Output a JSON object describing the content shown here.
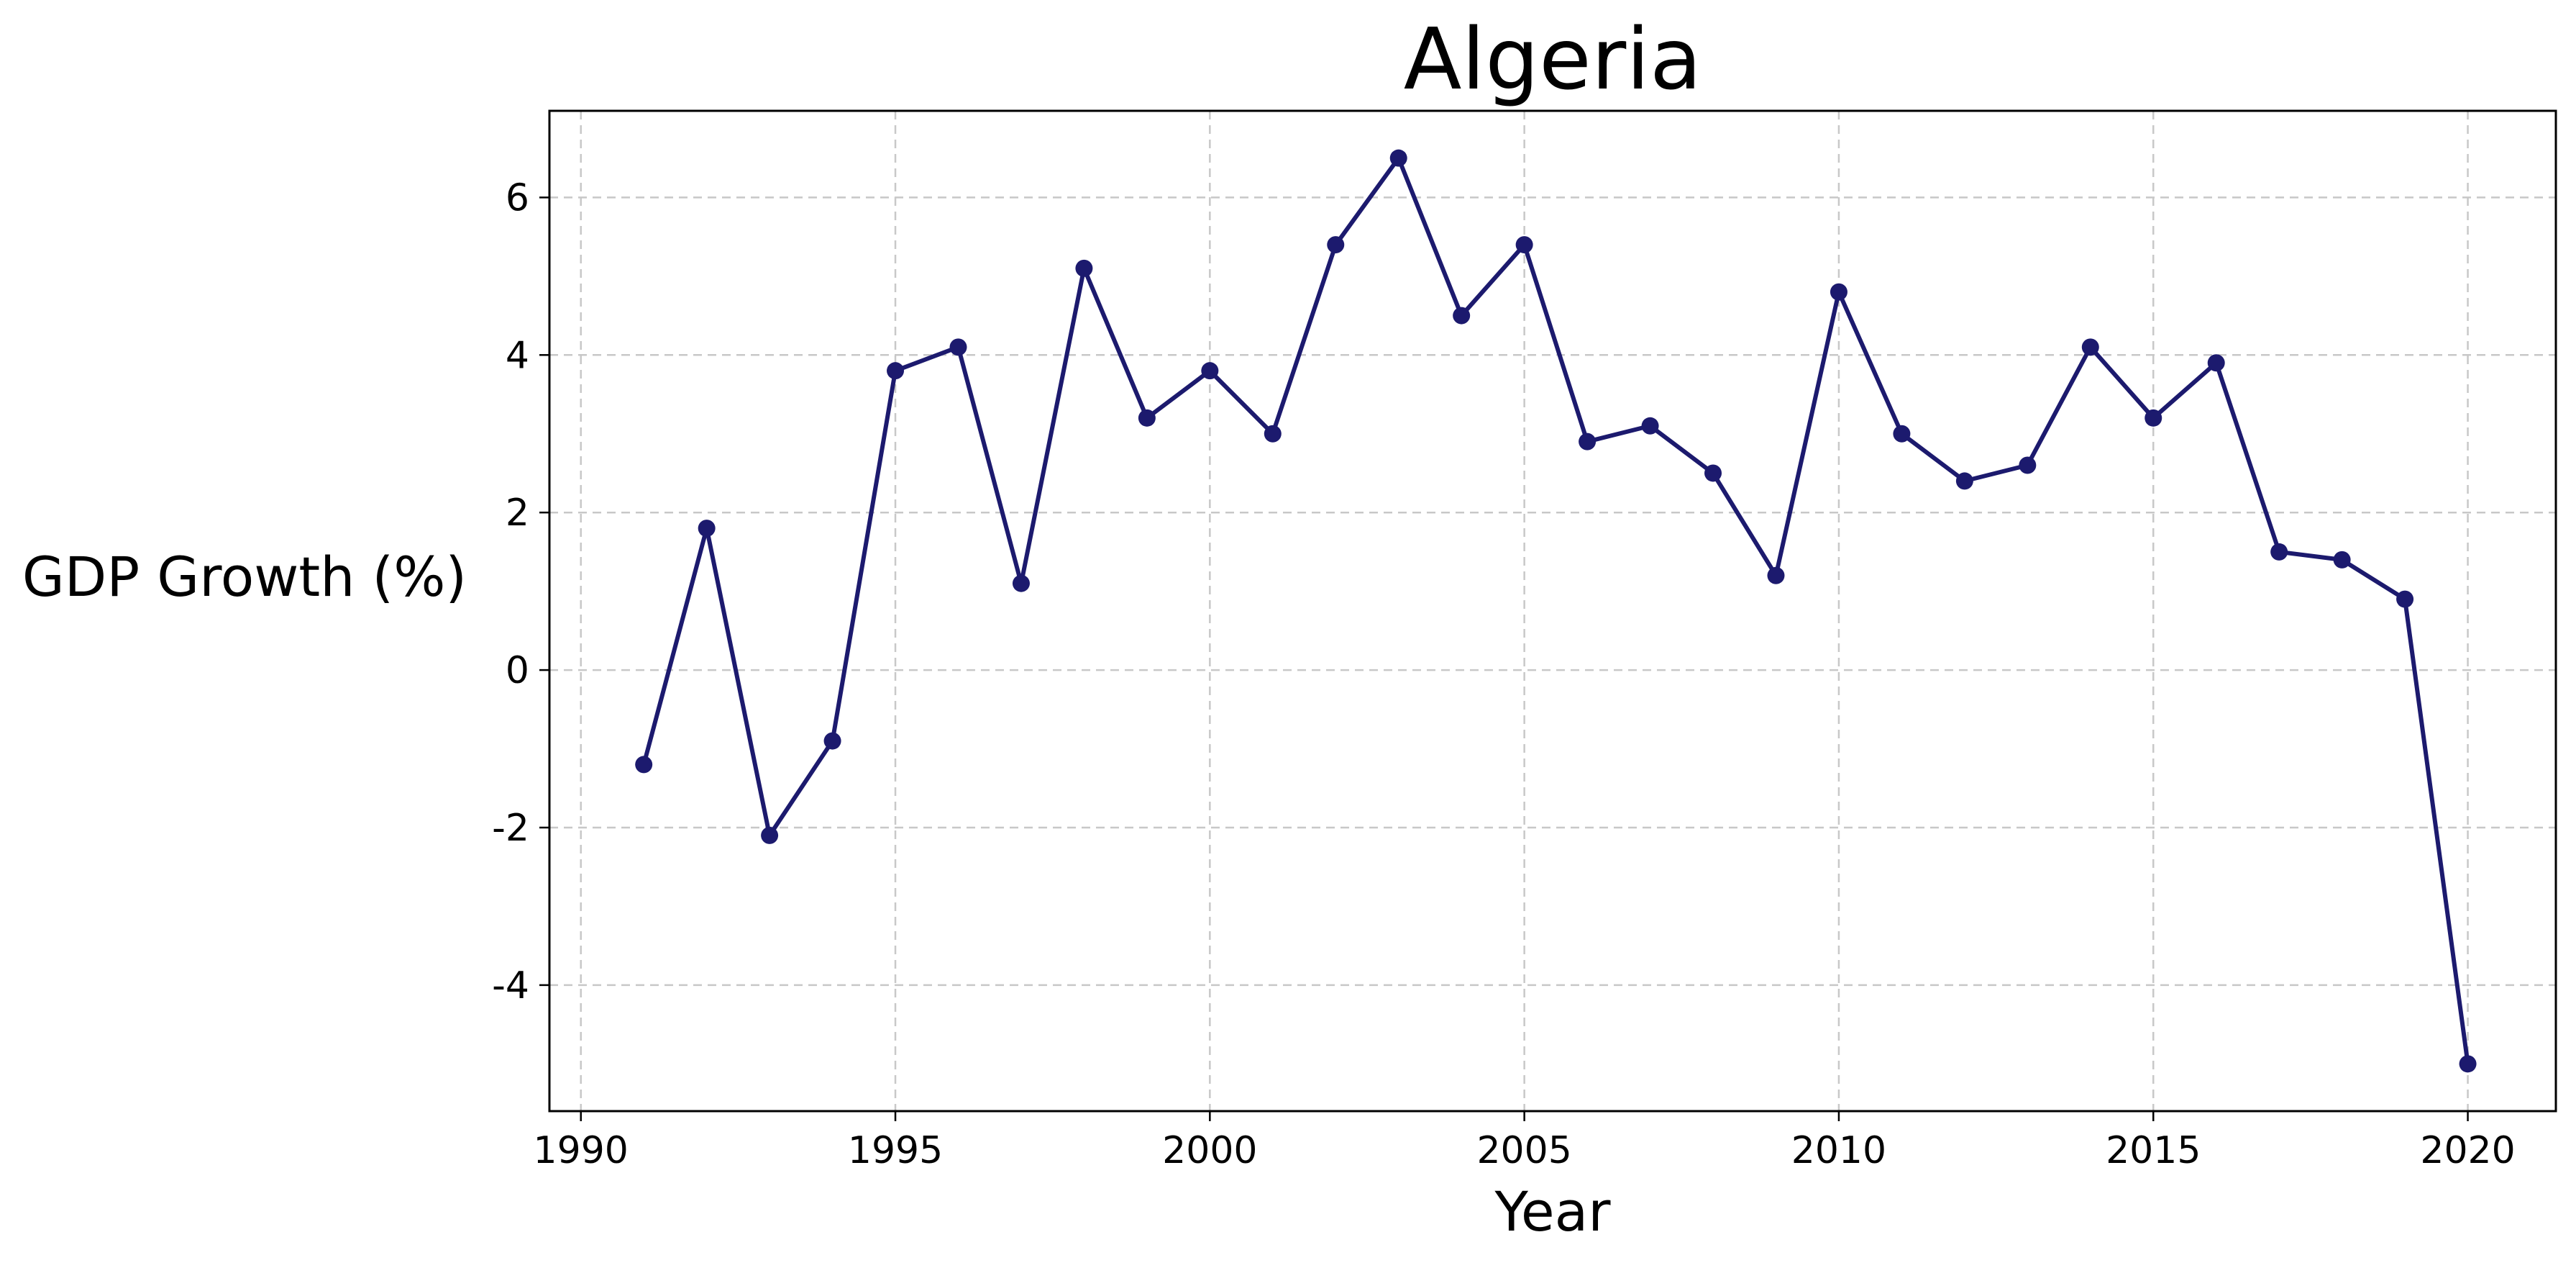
{
  "chart_data": {
    "type": "line",
    "title": "Algeria",
    "xlabel": "Year",
    "ylabel": "GDP Growth (%)",
    "xlim": [
      1989.5,
      2021.4
    ],
    "ylim": [
      -5.6,
      7.1
    ],
    "xticks": [
      1990,
      1995,
      2000,
      2005,
      2010,
      2015,
      2020
    ],
    "yticks": [
      -4,
      -2,
      0,
      2,
      4,
      6
    ],
    "xtick_labels": [
      "1990",
      "1995",
      "2000",
      "2005",
      "2010",
      "2015",
      "2020"
    ],
    "ytick_labels": [
      "-4",
      "-2",
      "0",
      "2",
      "4",
      "6"
    ],
    "grid": true,
    "color": "#1c1a6e",
    "series": [
      {
        "x": [
          1991,
          1992,
          1993,
          1994,
          1995,
          1996,
          1997,
          1998,
          1999,
          2000,
          2001,
          2002,
          2003,
          2004,
          2005,
          2006,
          2007,
          2008,
          2009,
          2010,
          2011,
          2012,
          2013,
          2014,
          2015,
          2016,
          2017,
          2018,
          2019,
          2020
        ],
        "values": [
          -1.2,
          1.8,
          -2.1,
          -0.9,
          3.8,
          4.1,
          1.1,
          5.1,
          3.2,
          3.8,
          3.0,
          5.4,
          6.5,
          4.5,
          5.4,
          2.9,
          3.1,
          2.5,
          1.2,
          4.8,
          3.0,
          2.4,
          2.6,
          4.1,
          3.2,
          3.9,
          1.5,
          1.4,
          0.9,
          -5.0
        ]
      }
    ]
  }
}
